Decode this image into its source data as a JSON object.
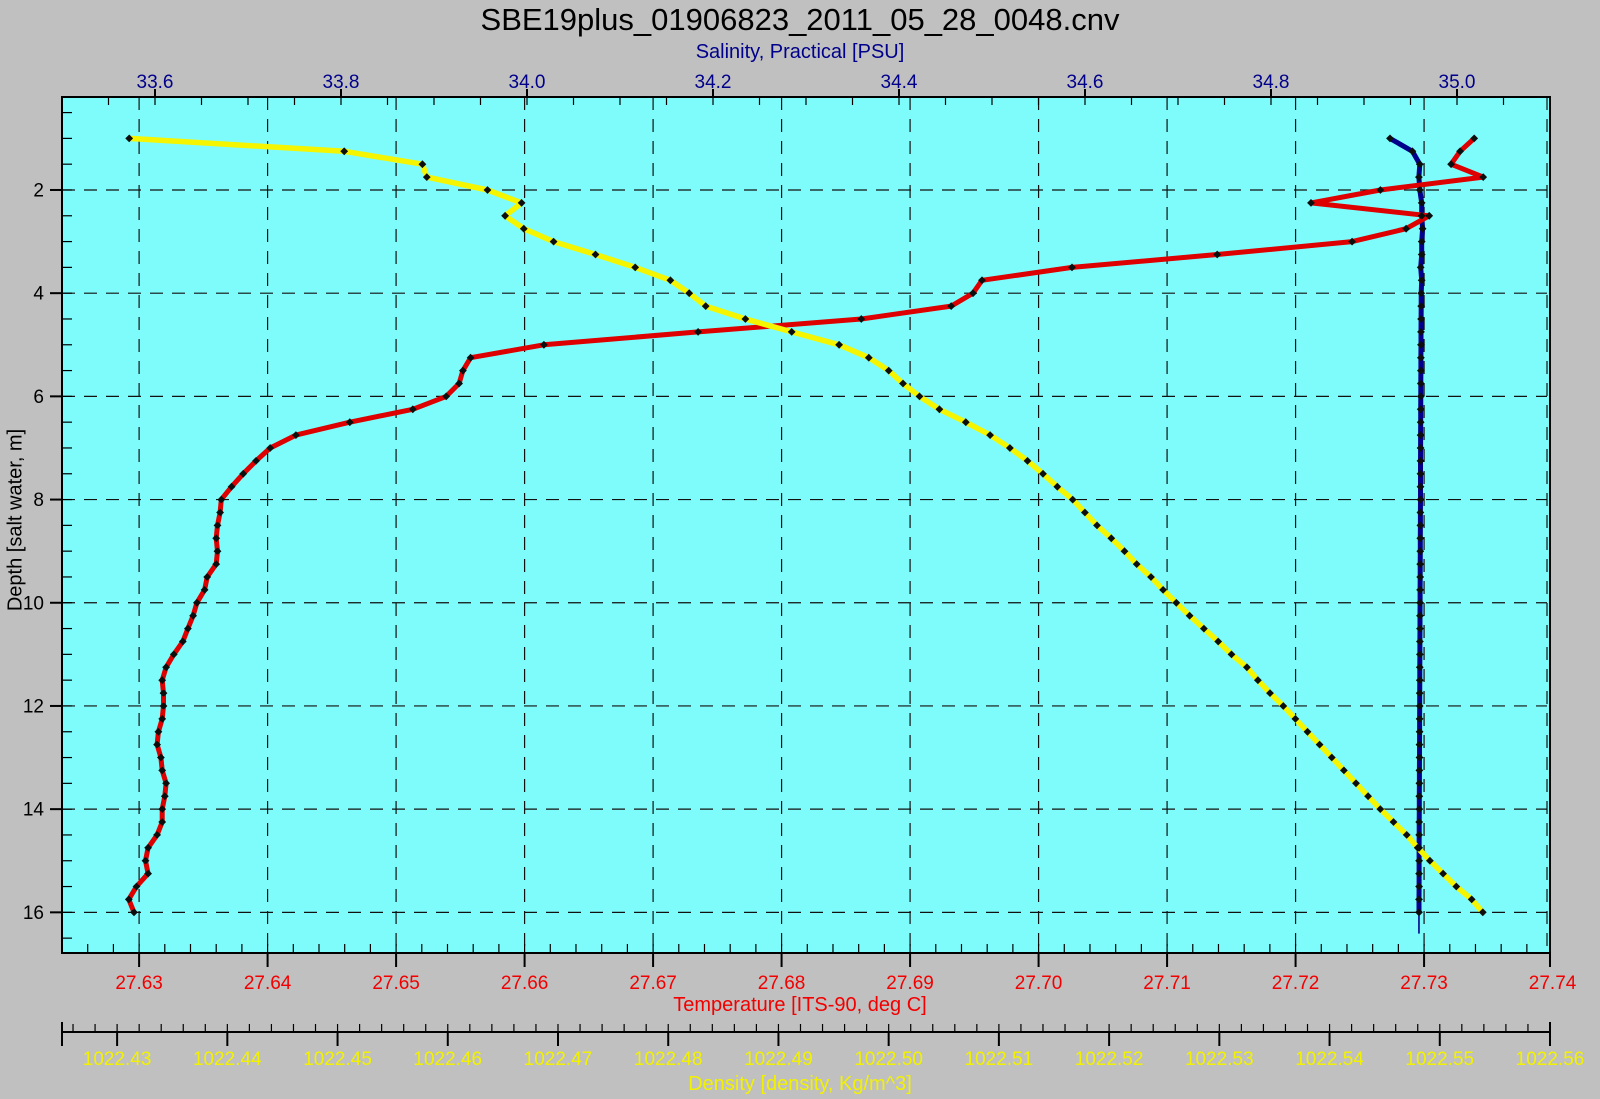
{
  "title": "SBE19plus_01906823_2011_05_28_0048.cnv",
  "window": {
    "background_color": "#c0c0c0",
    "plot_background_color": "#7efcfc",
    "grid_color": "#111111",
    "border_color": "#000000",
    "marker_color": "#0d0d0d"
  },
  "chart_data": {
    "type": "line",
    "title": "SBE19plus_01906823_2011_05_28_0048.cnv",
    "orientation": "CTD profile: depth on vertical axis increasing downward; three x-axes (salinity top, temperature and density bottom)",
    "grid": "dashed lines at temperature x-ticks and depth y-ticks",
    "legend": "none",
    "axes": {
      "depth": {
        "label": "Depth [salt water, m]",
        "color": "#000000",
        "side": "left",
        "min": 0.198,
        "max": 16.788,
        "tick_values": [
          2,
          4,
          6,
          8,
          10,
          12,
          14,
          16
        ],
        "tick_labels": [
          "2",
          "4",
          "6",
          "8",
          "10",
          "12",
          "14",
          "16"
        ],
        "minor_step": 0.5
      },
      "salinity": {
        "label": "Salinity, Practical [PSU]",
        "color": "#00008b",
        "side": "top",
        "min": 33.5,
        "max": 35.1,
        "tick_values": [
          33.6,
          33.8,
          34.0,
          34.2,
          34.4,
          34.6,
          34.8,
          35.0
        ],
        "tick_labels": [
          "33.6",
          "33.8",
          "34.0",
          "34.2",
          "34.4",
          "34.6",
          "34.8",
          "35.0"
        ],
        "minor_step": 0.05
      },
      "temperature": {
        "label": "Temperature [ITS-90, deg C]",
        "color": "#f20000",
        "side": "bottom",
        "min": 27.624,
        "max": 27.7398,
        "tick_values": [
          27.63,
          27.64,
          27.65,
          27.66,
          27.67,
          27.68,
          27.69,
          27.7,
          27.71,
          27.72,
          27.73,
          27.74
        ],
        "tick_labels": [
          "27.63",
          "27.64",
          "27.65",
          "27.66",
          "27.67",
          "27.68",
          "27.69",
          "27.70",
          "27.71",
          "27.72",
          "27.73",
          "27.74"
        ],
        "minor_step": 0.002
      },
      "density": {
        "label": "Density [density, Kg/m^3]",
        "color": "#f2f200",
        "side": "bottom2",
        "min": 1022.425,
        "max": 1022.56,
        "tick_values": [
          1022.43,
          1022.44,
          1022.45,
          1022.46,
          1022.47,
          1022.48,
          1022.49,
          1022.5,
          1022.51,
          1022.52,
          1022.53,
          1022.54,
          1022.55,
          1022.56
        ],
        "tick_labels": [
          "1022.43",
          "1022.44",
          "1022.45",
          "1022.46",
          "1022.47",
          "1022.48",
          "1022.49",
          "1022.50",
          "1022.51",
          "1022.52",
          "1022.53",
          "1022.54",
          "1022.55",
          "1022.56"
        ],
        "minor_step": 0.002
      }
    },
    "depths": [
      1.0,
      1.25,
      1.5,
      1.75,
      2.0,
      2.25,
      2.5,
      2.75,
      3.0,
      3.25,
      3.5,
      3.75,
      4.0,
      4.25,
      4.5,
      4.75,
      5.0,
      5.25,
      5.5,
      5.75,
      6.0,
      6.25,
      6.5,
      6.75,
      7.0,
      7.25,
      7.5,
      7.75,
      8.0,
      8.25,
      8.5,
      8.75,
      9.0,
      9.25,
      9.5,
      9.75,
      10.0,
      10.25,
      10.5,
      10.75,
      11.0,
      11.25,
      11.5,
      11.75,
      12.0,
      12.25,
      12.5,
      12.75,
      13.0,
      13.25,
      13.5,
      13.75,
      14.0,
      14.25,
      14.5,
      14.75,
      15.0,
      15.25,
      15.5,
      15.75,
      16.0
    ],
    "series": [
      {
        "name": "Salinity",
        "x_axis": "salinity",
        "color": "#00008b",
        "line_width": 5,
        "marker": "diamond",
        "tail_to_depth": 16.4,
        "values": [
          34.928,
          34.952,
          34.96,
          34.959,
          34.96,
          34.962,
          34.962,
          34.963,
          34.962,
          34.962,
          34.961,
          34.962,
          34.9615,
          34.9615,
          34.9614,
          34.9613,
          34.9613,
          34.9612,
          34.9612,
          34.9611,
          34.9611,
          34.961,
          34.961,
          34.9609,
          34.9609,
          34.9608,
          34.9608,
          34.9607,
          34.9607,
          34.9606,
          34.9606,
          34.9605,
          34.9605,
          34.9604,
          34.9604,
          34.9603,
          34.9603,
          34.9602,
          34.9602,
          34.9601,
          34.9601,
          34.96,
          34.96,
          34.9599,
          34.9599,
          34.9598,
          34.9598,
          34.9597,
          34.9597,
          34.9596,
          34.9596,
          34.9595,
          34.9595,
          34.9594,
          34.9594,
          34.9593,
          34.9593,
          34.9592,
          34.9592,
          34.9591,
          34.9591
        ]
      },
      {
        "name": "Temperature",
        "x_axis": "temperature",
        "color": "#de0000",
        "line_width": 5,
        "marker": "diamond",
        "values": [
          27.7339,
          27.7328,
          27.7321,
          27.7346,
          27.7266,
          27.7212,
          27.7304,
          27.7286,
          27.7244,
          27.7139,
          27.7026,
          27.6956,
          27.6949,
          27.6932,
          27.6862,
          27.6735,
          27.6615,
          27.6558,
          27.6552,
          27.6549,
          27.6539,
          27.6513,
          27.6464,
          27.6422,
          27.6402,
          27.6391,
          27.6381,
          27.6372,
          27.6364,
          27.6363,
          27.6361,
          27.636,
          27.6361,
          27.636,
          27.6353,
          27.6351,
          27.6345,
          27.6342,
          27.6338,
          27.6334,
          27.6327,
          27.6321,
          27.6318,
          27.6319,
          27.6319,
          27.6318,
          27.6315,
          27.6314,
          27.6317,
          27.6318,
          27.6321,
          27.632,
          27.6318,
          27.6318,
          27.6314,
          27.6307,
          27.6305,
          27.6307,
          27.6298,
          27.6292,
          27.6296
        ]
      },
      {
        "name": "Density",
        "x_axis": "density",
        "color": "#f5f500",
        "line_width": 5.5,
        "marker": "diamond",
        "values": [
          1022.4311,
          1022.4506,
          1022.4577,
          1022.4581,
          1022.4636,
          1022.4667,
          1022.4652,
          1022.4669,
          1022.4696,
          1022.4734,
          1022.477,
          1022.4802,
          1022.4819,
          1022.4834,
          1022.487,
          1022.4912,
          1022.4955,
          1022.4982,
          1022.5,
          1022.5013,
          1022.5028,
          1022.5046,
          1022.507,
          1022.5092,
          1022.511,
          1022.5126,
          1022.514,
          1022.5153,
          1022.5167,
          1022.5178,
          1022.5189,
          1022.5202,
          1022.5214,
          1022.5225,
          1022.5238,
          1022.5249,
          1022.5261,
          1022.5273,
          1022.5286,
          1022.5299,
          1022.5311,
          1022.5325,
          1022.5335,
          1022.5346,
          1022.5358,
          1022.5369,
          1022.538,
          1022.5391,
          1022.5402,
          1022.5413,
          1022.5424,
          1022.5435,
          1022.5446,
          1022.5458,
          1022.547,
          1022.548,
          1022.5491,
          1022.5503,
          1022.5515,
          1022.5529,
          1022.5539
        ]
      }
    ]
  }
}
